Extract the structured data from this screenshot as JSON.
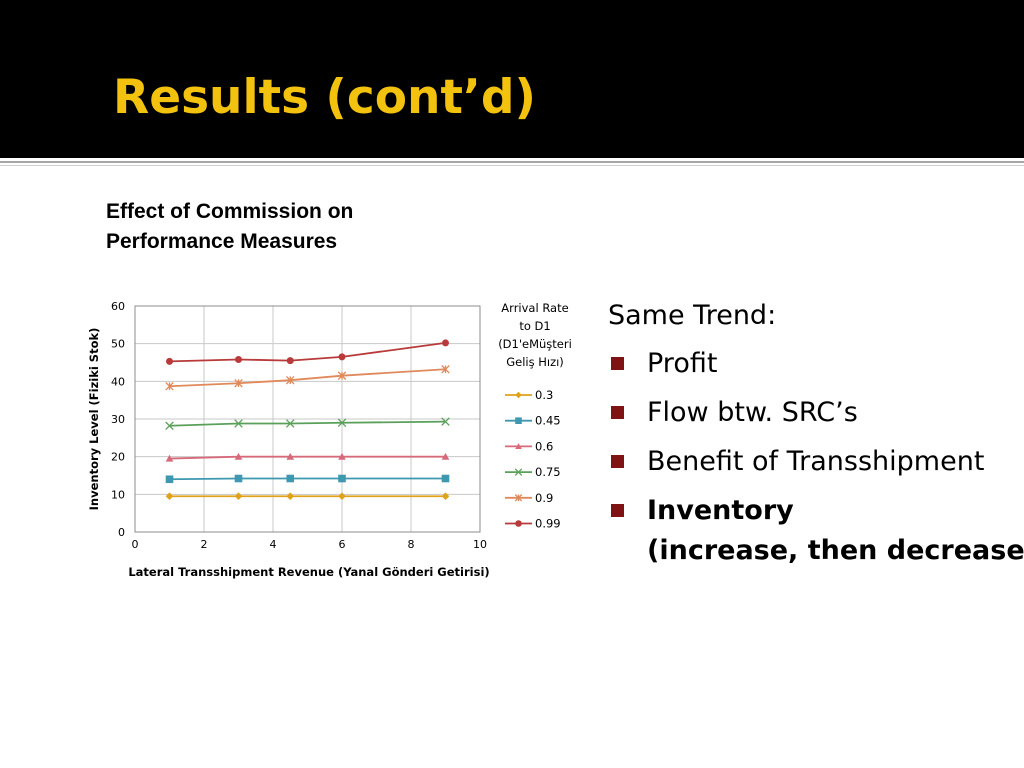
{
  "slide": {
    "title": "Results (cont’d)",
    "chart_heading_line1": "Effect of Commission on",
    "chart_heading_line2": "Performance Measures"
  },
  "bullets": {
    "intro": "Same Trend:",
    "items": [
      {
        "text": "Profit"
      },
      {
        "text": "Flow btw. SRC’s"
      },
      {
        "text": "Benefit of Transshipment"
      },
      {
        "text": "Inventory",
        "subtext": "(increase, then decrease)"
      }
    ]
  },
  "colors": {
    "title": "#f2c20f",
    "bullet_marker": "#7f1212"
  },
  "chart_data": {
    "type": "line",
    "title": "",
    "xlabel": "Lateral Transshipment Revenue (Yanal Gönderi Getirisi)",
    "ylabel": "Inventory Level (Fiziki Stok)",
    "xlim": [
      0,
      10
    ],
    "ylim": [
      0,
      60
    ],
    "xticks": [
      0,
      2,
      4,
      6,
      8,
      10
    ],
    "yticks": [
      0,
      10,
      20,
      30,
      40,
      50,
      60
    ],
    "grid": true,
    "legend_position": "right",
    "legend_title": [
      "Arrival Rate",
      "to D1",
      "(D1'eMüşteri",
      "Geliş Hızı)"
    ],
    "x": [
      1,
      3,
      4.5,
      6,
      9
    ],
    "series": [
      {
        "name": "0.3",
        "values": [
          9.5,
          9.5,
          9.5,
          9.5,
          9.5
        ],
        "color": "#e0a21a",
        "marker": "diamond"
      },
      {
        "name": "0.45",
        "values": [
          14,
          14.2,
          14.2,
          14.2,
          14.2
        ],
        "color": "#3d98b0",
        "marker": "square"
      },
      {
        "name": "0.6",
        "values": [
          19.5,
          20,
          20,
          20,
          20
        ],
        "color": "#d76a7a",
        "marker": "triangle"
      },
      {
        "name": "0.75",
        "values": [
          28.2,
          28.8,
          28.8,
          29,
          29.3
        ],
        "color": "#5aa05a",
        "marker": "x"
      },
      {
        "name": "0.9",
        "values": [
          38.7,
          39.5,
          40.3,
          41.5,
          43.2
        ],
        "color": "#e0895a",
        "marker": "star"
      },
      {
        "name": "0.99",
        "values": [
          45.3,
          45.8,
          45.5,
          46.5,
          50.2
        ],
        "color": "#b83a3a",
        "marker": "circle"
      }
    ]
  }
}
